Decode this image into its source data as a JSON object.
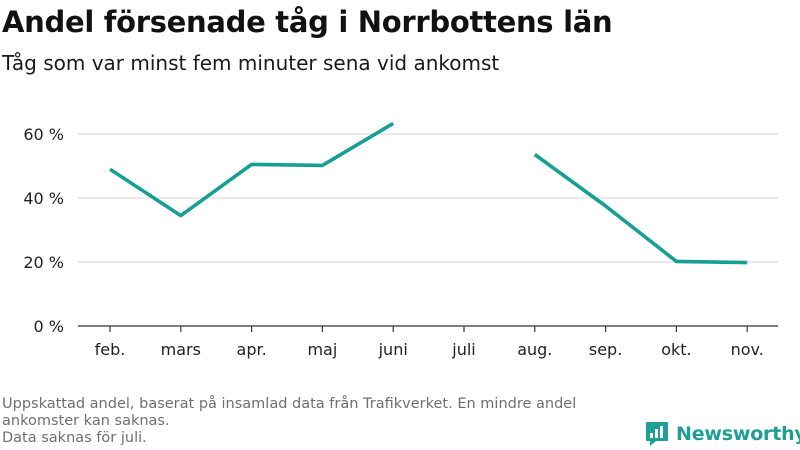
{
  "header": {
    "title": "Andel försenade tåg i Norrbottens län",
    "subtitle": "Tåg som var minst fem minuter sena vid ankomst"
  },
  "footer": {
    "note_line1": "Uppskattad andel, baserat på insamlad data från Trafikverket. En mindre andel ankomster kan saknas.",
    "note_line2": "Data saknas för juli.",
    "brand_name": "Newsworthy",
    "brand_icon": "newsworthy-logo-icon"
  },
  "colors": {
    "line": "#16a093",
    "brand": "#1e9e94",
    "grid": "#dedede",
    "axis": "#333333"
  },
  "chart_data": {
    "type": "line",
    "title": "Andel försenade tåg i Norrbottens län",
    "subtitle": "Tåg som var minst fem minuter sena vid ankomst",
    "xlabel": "",
    "ylabel": "",
    "categories": [
      "feb.",
      "mars",
      "apr.",
      "maj",
      "juni",
      "juli",
      "aug.",
      "sep.",
      "okt.",
      "nov."
    ],
    "series": [
      {
        "values": [
          49,
          34.5,
          50.5,
          50.2,
          63.3,
          null,
          53.6,
          37.5,
          20.2,
          19.8
        ]
      }
    ],
    "ylim": [
      0,
      65
    ],
    "yticks": [
      0,
      20,
      40,
      60
    ],
    "ytick_labels": [
      "0 %",
      "20 %",
      "40 %",
      "60 %"
    ],
    "grid": "horizontal",
    "legend": "none"
  }
}
